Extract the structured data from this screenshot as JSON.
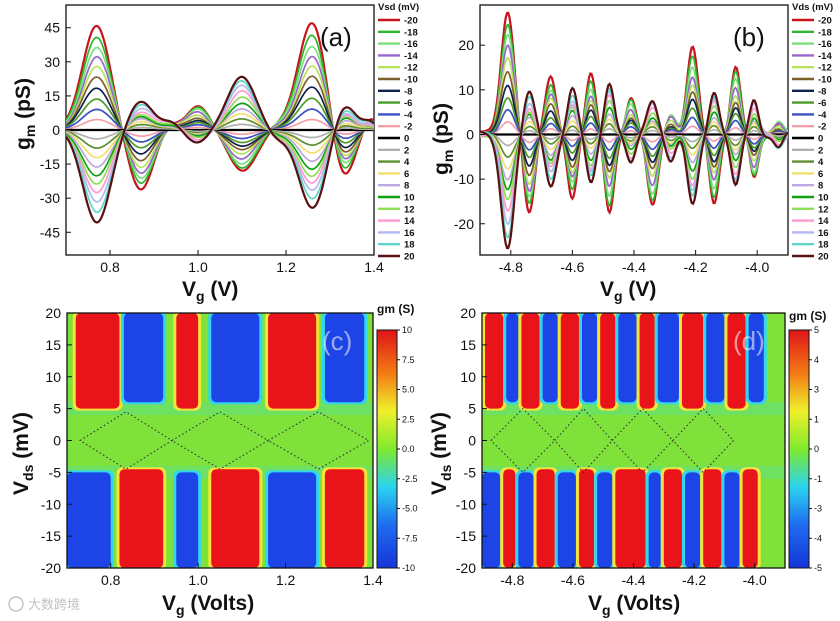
{
  "watermark": "大数跨境",
  "chart_data": [
    {
      "panel": "(a)",
      "type": "line",
      "xlabel": "V",
      "xlabel_sub": "g",
      "xlabel_unit": " (V)",
      "ylabel": "g",
      "ylabel_sub": "m",
      "ylabel_unit": " (pS)",
      "xlim": [
        0.7,
        1.4
      ],
      "ylim": [
        -55,
        55
      ],
      "xticks": [
        "0.8",
        "1.0",
        "1.2",
        "1.4"
      ],
      "yticks": [
        "45",
        "30",
        "15",
        "0",
        "-15",
        "-30",
        "-45"
      ],
      "legend_title": "Vsd (mV)",
      "legend_position": "right",
      "series_names": [
        "-20",
        "-18",
        "-16",
        "-14",
        "-12",
        "-10",
        "-8",
        "-6",
        "-4",
        "-2",
        "0",
        "2",
        "4",
        "6",
        "8",
        "10",
        "12",
        "14",
        "16",
        "18",
        "20"
      ],
      "peaks": [
        {
          "x": 0.77,
          "neg": 46,
          "pos": -40,
          "w": 0.045
        },
        {
          "x": 0.87,
          "neg": -27,
          "pos": 12,
          "w": 0.04
        },
        {
          "x": 0.94,
          "neg": 3,
          "pos": 4,
          "w": 0.03
        },
        {
          "x": 1.0,
          "neg": 11,
          "pos": -6,
          "w": 0.035
        },
        {
          "x": 1.1,
          "neg": -18,
          "pos": 24,
          "w": 0.045
        },
        {
          "x": 1.18,
          "neg": 2,
          "pos": -4,
          "w": 0.03
        },
        {
          "x": 1.26,
          "neg": 47,
          "pos": -34,
          "w": 0.045
        },
        {
          "x": 1.33,
          "neg": -22,
          "pos": 12,
          "w": 0.035
        },
        {
          "x": 1.39,
          "neg": 5,
          "pos": 3,
          "w": 0.02
        }
      ]
    },
    {
      "panel": "(b)",
      "type": "line",
      "xlabel": "V",
      "xlabel_sub": "g",
      "xlabel_unit": " (V)",
      "ylabel": "g",
      "ylabel_sub": "m",
      "ylabel_unit": " (pS)",
      "xlim": [
        -4.9,
        -3.9
      ],
      "ylim": [
        -27,
        29
      ],
      "xticks": [
        "-4.8",
        "-4.6",
        "-4.4",
        "-4.2",
        "-4.0"
      ],
      "yticks": [
        "20",
        "10",
        "0",
        "-10",
        "-20"
      ],
      "legend_title": "Vds (mV)",
      "legend_position": "right",
      "series_names": [
        "-20",
        "-18",
        "-16",
        "-14",
        "-12",
        "-10",
        "-8",
        "-6",
        "-4",
        "-2",
        "0",
        "2",
        "4",
        "6",
        "8",
        "10",
        "12",
        "14",
        "16",
        "18",
        "20"
      ],
      "peaks": [
        {
          "x": -4.81,
          "neg": 28,
          "pos": -25,
          "w": 0.03
        },
        {
          "x": -4.74,
          "neg": -18,
          "pos": 9,
          "w": 0.025
        },
        {
          "x": -4.67,
          "neg": 13,
          "pos": -11,
          "w": 0.025
        },
        {
          "x": -4.6,
          "neg": -14,
          "pos": 10,
          "w": 0.022
        },
        {
          "x": -4.54,
          "neg": 13,
          "pos": -11,
          "w": 0.022
        },
        {
          "x": -4.48,
          "neg": -17,
          "pos": 12,
          "w": 0.022
        },
        {
          "x": -4.41,
          "neg": 8,
          "pos": -7,
          "w": 0.022
        },
        {
          "x": -4.34,
          "neg": -16,
          "pos": 8,
          "w": 0.025
        },
        {
          "x": -4.28,
          "neg": 5,
          "pos": -6,
          "w": 0.022
        },
        {
          "x": -4.21,
          "neg": 19,
          "pos": -16,
          "w": 0.025
        },
        {
          "x": -4.14,
          "neg": -15,
          "pos": 10,
          "w": 0.022
        },
        {
          "x": -4.07,
          "neg": 15,
          "pos": -12,
          "w": 0.022
        },
        {
          "x": -4.01,
          "neg": -10,
          "pos": 8,
          "w": 0.02
        },
        {
          "x": -3.93,
          "neg": 3,
          "pos": -3,
          "w": 0.02
        }
      ]
    },
    {
      "panel": "(c)",
      "type": "heatmap",
      "xlabel": "V",
      "xlabel_sub": "g",
      "xlabel_unit": " (Volts)",
      "ylabel": "V",
      "ylabel_sub": "ds",
      "ylabel_unit": " (mV)",
      "xlim": [
        0.7,
        1.4
      ],
      "ylim": [
        -20,
        20
      ],
      "xticks": [
        "0.8",
        "1.0",
        "1.2",
        "1.4"
      ],
      "yticks": [
        "20",
        "15",
        "10",
        "5",
        "0",
        "-5",
        "-10",
        "-15",
        "-20"
      ],
      "colorbar_title": "gm (S)",
      "colorbar_range": [
        -10,
        10
      ],
      "colorbar_ticks": [
        "10",
        "7.5",
        "5.0",
        "2.5",
        "0.0",
        "-2.5",
        "-5.0",
        "-7.5",
        "-10"
      ],
      "diamond_crossings": [
        0.73,
        0.94,
        1.16,
        1.39
      ],
      "diamond_half_height": 4.5,
      "top_bands": [
        {
          "x0": 0.72,
          "x1": 0.82,
          "v": 10
        },
        {
          "x0": 0.83,
          "x1": 0.92,
          "v": -10
        },
        {
          "x0": 0.95,
          "x1": 1.0,
          "v": 8
        },
        {
          "x0": 1.03,
          "x1": 1.14,
          "v": -10
        },
        {
          "x0": 1.16,
          "x1": 1.27,
          "v": 10
        },
        {
          "x0": 1.29,
          "x1": 1.38,
          "v": -9
        }
      ],
      "bottom_bands": [
        {
          "x0": 0.7,
          "x1": 0.8,
          "v": -10
        },
        {
          "x0": 0.82,
          "x1": 0.92,
          "v": 10
        },
        {
          "x0": 0.95,
          "x1": 1.0,
          "v": -6
        },
        {
          "x0": 1.03,
          "x1": 1.14,
          "v": 10
        },
        {
          "x0": 1.16,
          "x1": 1.27,
          "v": -10
        },
        {
          "x0": 1.29,
          "x1": 1.38,
          "v": 10
        }
      ]
    },
    {
      "panel": "(d)",
      "type": "heatmap",
      "xlabel": "V",
      "xlabel_sub": "g",
      "xlabel_unit": " (Volts)",
      "ylabel": "V",
      "ylabel_sub": "ds",
      "ylabel_unit": " (mV)",
      "xlim": [
        -4.9,
        -3.9
      ],
      "ylim": [
        -20,
        20
      ],
      "xticks": [
        "-4.8",
        "-4.6",
        "-4.4",
        "-4.2",
        "-4.0"
      ],
      "yticks": [
        "20",
        "15",
        "10",
        "5",
        "0",
        "-5",
        "-10",
        "-15",
        "-20"
      ],
      "colorbar_title": "gm (S)",
      "colorbar_range": [
        -5,
        5
      ],
      "colorbar_ticks": [
        "5",
        "4",
        "3",
        "1",
        "0",
        "-1",
        "-3",
        "-4",
        "-5"
      ],
      "diamond_crossings": [
        -4.87,
        -4.66,
        -4.47,
        -4.27,
        -4.07
      ],
      "diamond_half_height": 5,
      "top_bands": [
        {
          "x0": -4.89,
          "x1": -4.83,
          "v": 5
        },
        {
          "x0": -4.82,
          "x1": -4.78,
          "v": -5
        },
        {
          "x0": -4.77,
          "x1": -4.71,
          "v": 5
        },
        {
          "x0": -4.7,
          "x1": -4.65,
          "v": -5
        },
        {
          "x0": -4.64,
          "x1": -4.58,
          "v": 5
        },
        {
          "x0": -4.57,
          "x1": -4.52,
          "v": -5
        },
        {
          "x0": -4.51,
          "x1": -4.46,
          "v": 5
        },
        {
          "x0": -4.45,
          "x1": -4.39,
          "v": -5
        },
        {
          "x0": -4.38,
          "x1": -4.33,
          "v": 5
        },
        {
          "x0": -4.32,
          "x1": -4.25,
          "v": -5
        },
        {
          "x0": -4.24,
          "x1": -4.17,
          "v": 5
        },
        {
          "x0": -4.16,
          "x1": -4.1,
          "v": -5
        },
        {
          "x0": -4.09,
          "x1": -4.03,
          "v": 5
        },
        {
          "x0": -4.02,
          "x1": -3.97,
          "v": -5
        }
      ],
      "bottom_bands": [
        {
          "x0": -4.9,
          "x1": -4.84,
          "v": -5
        },
        {
          "x0": -4.83,
          "x1": -4.79,
          "v": 5
        },
        {
          "x0": -4.78,
          "x1": -4.73,
          "v": -5
        },
        {
          "x0": -4.72,
          "x1": -4.66,
          "v": 5
        },
        {
          "x0": -4.65,
          "x1": -4.59,
          "v": -5
        },
        {
          "x0": -4.58,
          "x1": -4.53,
          "v": 5
        },
        {
          "x0": -4.52,
          "x1": -4.47,
          "v": -5
        },
        {
          "x0": -4.46,
          "x1": -4.36,
          "v": 5
        },
        {
          "x0": -4.35,
          "x1": -4.31,
          "v": -5
        },
        {
          "x0": -4.3,
          "x1": -4.24,
          "v": 5
        },
        {
          "x0": -4.23,
          "x1": -4.18,
          "v": -5
        },
        {
          "x0": -4.17,
          "x1": -4.11,
          "v": 5
        },
        {
          "x0": -4.1,
          "x1": -4.05,
          "v": -5
        },
        {
          "x0": -4.04,
          "x1": -3.99,
          "v": 5
        }
      ]
    }
  ],
  "colors": {
    "series": [
      "#c8141e",
      "#2db82d",
      "#7ce07c",
      "#9966cc",
      "#b6e35a",
      "#7f5f2a",
      "#10204f",
      "#4c9a2a",
      "#3a4fc1",
      "#f2a0a8",
      "#000000",
      "#b0b0b0",
      "#5d8e2e",
      "#f3e06c",
      "#bda7e0",
      "#11a011",
      "#8ede58",
      "#ff9ad0",
      "#b2b8f0",
      "#5fd6c8",
      "#5a1010"
    ]
  }
}
